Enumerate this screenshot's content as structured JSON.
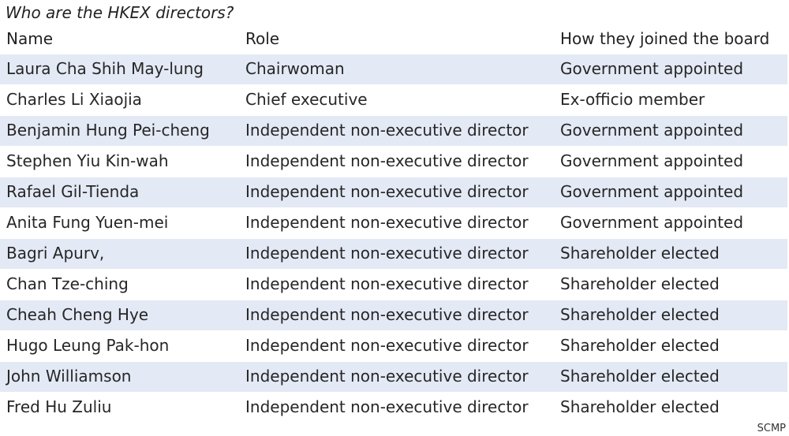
{
  "title": "Who are the HKEX directors?",
  "columns": [
    "Name",
    "Role",
    "How they joined the board"
  ],
  "rows": [
    {
      "name": "Laura Cha Shih May-lung",
      "role": "Chairwoman",
      "joined": "Government appointed"
    },
    {
      "name": "Charles Li Xiaojia",
      "role": "Chief executive",
      "joined": "Ex-officio member"
    },
    {
      "name": "Benjamin Hung Pei-cheng",
      "role": "Independent non-executive director",
      "joined": "Government appointed"
    },
    {
      "name": "Stephen Yiu Kin-wah",
      "role": "Independent non-executive director",
      "joined": "Government appointed"
    },
    {
      "name": "Rafael Gil-Tienda",
      "role": "Independent non-executive director",
      "joined": "Government appointed"
    },
    {
      "name": "Anita Fung Yuen-mei",
      "role": "Independent non-executive director",
      "joined": "Government appointed"
    },
    {
      "name": "Bagri Apurv,",
      "role": "Independent non-executive director",
      "joined": "Shareholder elected"
    },
    {
      "name": "Chan Tze-ching",
      "role": "Independent non-executive director",
      "joined": "Shareholder elected"
    },
    {
      "name": "Cheah Cheng Hye",
      "role": "Independent non-executive director",
      "joined": "Shareholder elected"
    },
    {
      "name": "Hugo Leung Pak-hon",
      "role": "Independent non-executive director",
      "joined": "Shareholder elected"
    },
    {
      "name": "John Williamson",
      "role": "Independent non-executive director",
      "joined": "Shareholder elected"
    },
    {
      "name": "Fred Hu Zuliu",
      "role": "Independent non-executive director",
      "joined": "Shareholder elected"
    }
  ],
  "source": "SCMP",
  "colors": {
    "shaded_row": "#e3e9f5",
    "plain_row": "#ffffff",
    "text": "#262626"
  }
}
